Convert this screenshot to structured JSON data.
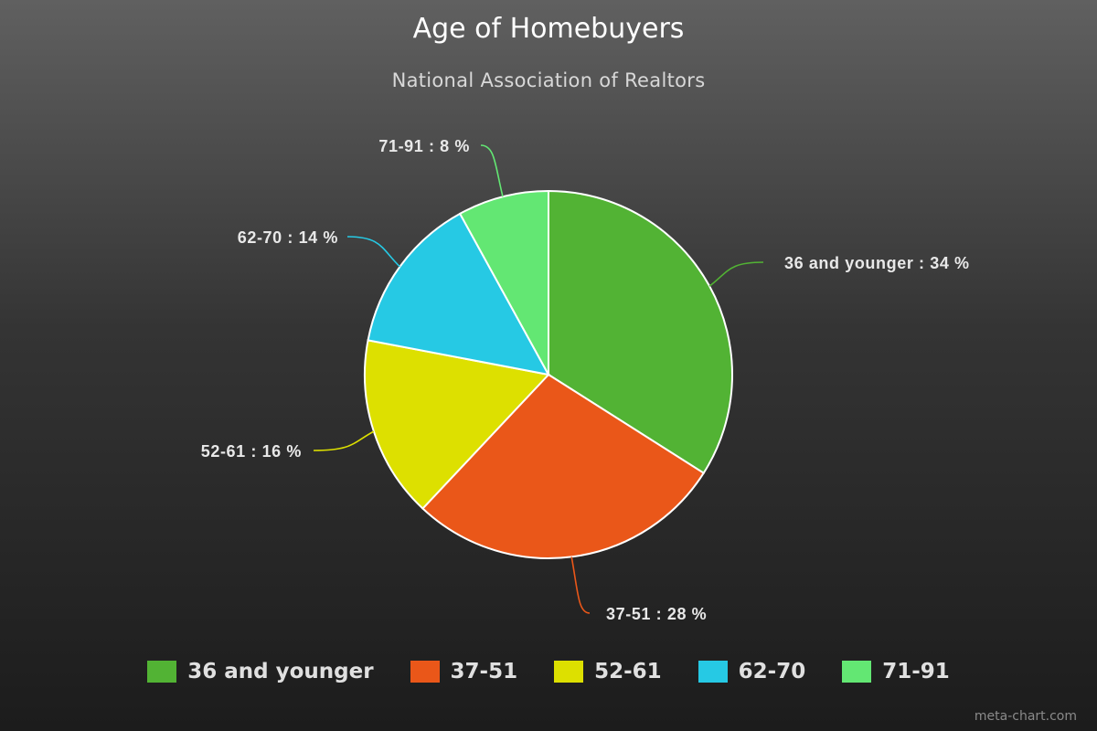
{
  "chart_data": {
    "type": "pie",
    "title": "Age of Homebuyers",
    "subtitle": "National Association of Realtors",
    "slices": [
      {
        "label": "36 and younger",
        "value": 34,
        "display": "36 and younger : 34 %",
        "color": "#52b334"
      },
      {
        "label": "37-51",
        "value": 28,
        "display": "37-51 : 28 %",
        "color": "#ea5719"
      },
      {
        "label": "52-61",
        "value": 16,
        "display": "52-61 : 16 %",
        "color": "#dde000"
      },
      {
        "label": "62-70",
        "value": 14,
        "display": "62-70 : 14 %",
        "color": "#26c9e4"
      },
      {
        "label": "71-91",
        "value": 8,
        "display": "71-91 : 8 %",
        "color": "#63e773"
      }
    ],
    "legend_placement": "bottom"
  },
  "credit": "meta-chart.com"
}
